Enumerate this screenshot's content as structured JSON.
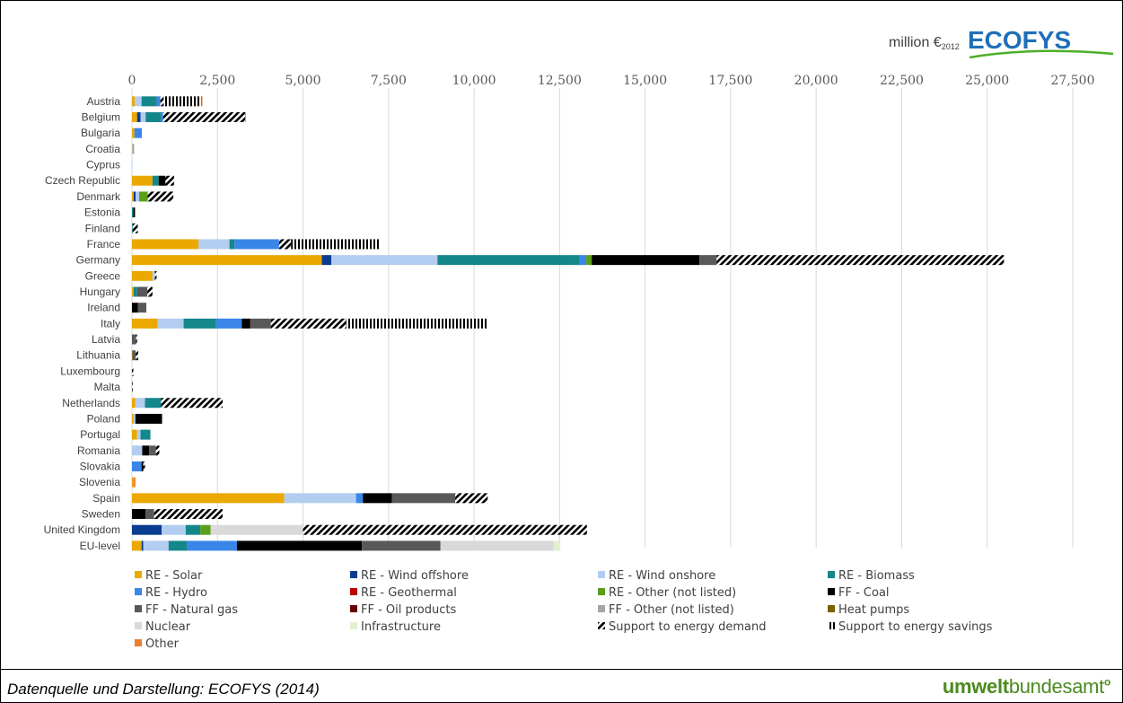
{
  "header": {
    "unit_label": "million €",
    "unit_subscript": "2012",
    "brand": "ECOFYS"
  },
  "footer": {
    "source": "Datenquelle und Darstellung: ECOFYS (2014)",
    "publisher_bold": "umwelt",
    "publisher_regular": "bundesamt"
  },
  "colors": {
    "axis_tick": "#595959",
    "grid": "#d9d9d9",
    "brand_blue": "#1f6fb8",
    "brand_green": "#4caf2a",
    "publisher_green": "#4b8a1f"
  },
  "chart_data": {
    "type": "bar",
    "orientation": "horizontal",
    "stacked": true,
    "xlim": [
      0,
      27500
    ],
    "xticks": [
      "0",
      "2,500",
      "5,000",
      "7,500",
      "10,000",
      "12,500",
      "15,000",
      "17,500",
      "20,000",
      "22,500",
      "25,000",
      "27,500"
    ],
    "xaxis_position": "top",
    "grid": true,
    "legend_position": "bottom",
    "categories": [
      "Austria",
      "Belgium",
      "Bulgaria",
      "Croatia",
      "Cyprus",
      "Czech Republic",
      "Denmark",
      "Estonia",
      "Finland",
      "France",
      "Germany",
      "Greece",
      "Hungary",
      "Ireland",
      "Italy",
      "Latvia",
      "Lithuania",
      "Luxembourg",
      "Malta",
      "Netherlands",
      "Poland",
      "Portugal",
      "Romania",
      "Slovakia",
      "Slovenia",
      "Spain",
      "Sweden",
      "United Kingdom",
      "EU-level"
    ],
    "series": [
      {
        "name": "RE - Solar",
        "color": "#eaa800",
        "pattern": "solid",
        "values": [
          80,
          150,
          70,
          10,
          0,
          600,
          50,
          0,
          0,
          1950,
          5550,
          600,
          50,
          0,
          750,
          0,
          10,
          0,
          0,
          100,
          50,
          150,
          0,
          0,
          50,
          4450,
          0,
          0,
          280
        ]
      },
      {
        "name": "RE - Wind offshore",
        "color": "#0a3d91",
        "pattern": "solid",
        "values": [
          0,
          100,
          0,
          0,
          0,
          0,
          60,
          0,
          0,
          0,
          280,
          0,
          0,
          0,
          0,
          0,
          0,
          0,
          0,
          0,
          0,
          0,
          0,
          0,
          0,
          0,
          0,
          870,
          50
        ]
      },
      {
        "name": "RE - Wind onshore",
        "color": "#b3cdf0",
        "pattern": "solid",
        "values": [
          200,
          150,
          0,
          30,
          10,
          0,
          100,
          0,
          0,
          900,
          3100,
          70,
          0,
          0,
          760,
          0,
          0,
          0,
          0,
          280,
          50,
          100,
          300,
          0,
          0,
          2100,
          0,
          700,
          740
        ]
      },
      {
        "name": "RE - Biomass",
        "color": "#14878a",
        "pattern": "solid",
        "values": [
          450,
          460,
          0,
          0,
          0,
          180,
          0,
          40,
          20,
          150,
          4150,
          0,
          100,
          0,
          950,
          0,
          0,
          0,
          0,
          470,
          0,
          290,
          0,
          0,
          0,
          0,
          0,
          430,
          550
        ]
      },
      {
        "name": "RE - Hydro",
        "color": "#3a86e8",
        "pattern": "solid",
        "values": [
          100,
          50,
          220,
          20,
          0,
          0,
          0,
          0,
          0,
          1300,
          200,
          0,
          0,
          0,
          750,
          0,
          0,
          0,
          0,
          0,
          0,
          0,
          0,
          280,
          0,
          200,
          0,
          0,
          1450
        ]
      },
      {
        "name": "RE - Geothermal",
        "color": "#c00000",
        "pattern": "solid",
        "values": [
          0,
          0,
          0,
          0,
          0,
          0,
          0,
          0,
          0,
          0,
          0,
          0,
          0,
          0,
          0,
          0,
          0,
          0,
          0,
          0,
          0,
          0,
          0,
          0,
          0,
          0,
          0,
          0,
          0
        ]
      },
      {
        "name": "RE - Other (not listed)",
        "color": "#5a9e1a",
        "pattern": "solid",
        "values": [
          0,
          0,
          0,
          0,
          0,
          0,
          250,
          0,
          0,
          0,
          160,
          0,
          0,
          0,
          0,
          0,
          0,
          0,
          0,
          0,
          0,
          0,
          0,
          0,
          0,
          0,
          0,
          300,
          0
        ]
      },
      {
        "name": "FF - Coal",
        "color": "#000000",
        "pattern": "solid",
        "values": [
          0,
          0,
          0,
          0,
          0,
          200,
          0,
          50,
          0,
          0,
          3150,
          0,
          0,
          170,
          250,
          0,
          0,
          0,
          0,
          0,
          780,
          0,
          200,
          50,
          0,
          850,
          400,
          0,
          3650
        ]
      },
      {
        "name": "FF - Natural gas",
        "color": "#595959",
        "pattern": "solid",
        "values": [
          0,
          0,
          0,
          0,
          0,
          0,
          0,
          0,
          0,
          0,
          500,
          0,
          300,
          250,
          600,
          120,
          100,
          0,
          0,
          0,
          0,
          0,
          200,
          0,
          0,
          1850,
          250,
          0,
          2300
        ]
      },
      {
        "name": "FF - Oil products",
        "color": "#6b0000",
        "pattern": "solid",
        "values": [
          0,
          0,
          0,
          0,
          0,
          0,
          0,
          0,
          0,
          0,
          0,
          0,
          0,
          0,
          0,
          0,
          0,
          0,
          0,
          0,
          0,
          0,
          0,
          0,
          0,
          0,
          0,
          0,
          0
        ]
      },
      {
        "name": "FF - Other (not listed)",
        "color": "#a6a6a6",
        "pattern": "solid",
        "values": [
          0,
          0,
          0,
          0,
          0,
          0,
          0,
          0,
          0,
          0,
          0,
          0,
          0,
          0,
          0,
          0,
          0,
          0,
          0,
          0,
          0,
          0,
          0,
          0,
          0,
          0,
          0,
          0,
          0
        ]
      },
      {
        "name": "Heat pumps",
        "color": "#7f6000",
        "pattern": "solid",
        "values": [
          0,
          0,
          0,
          0,
          0,
          0,
          0,
          0,
          0,
          0,
          0,
          0,
          0,
          0,
          0,
          0,
          0,
          0,
          0,
          0,
          0,
          0,
          0,
          0,
          0,
          0,
          0,
          0,
          0
        ]
      },
      {
        "name": "Nuclear",
        "color": "#d9d9d9",
        "pattern": "solid",
        "values": [
          0,
          0,
          0,
          0,
          0,
          0,
          0,
          0,
          0,
          0,
          0,
          0,
          0,
          0,
          0,
          0,
          0,
          0,
          0,
          0,
          0,
          0,
          0,
          0,
          0,
          0,
          0,
          2700,
          3300
        ]
      },
      {
        "name": "Infrastructure",
        "color": "#e2f0d0",
        "pattern": "solid",
        "values": [
          0,
          0,
          0,
          0,
          0,
          0,
          0,
          0,
          0,
          0,
          0,
          0,
          0,
          0,
          0,
          0,
          0,
          0,
          0,
          0,
          0,
          0,
          0,
          0,
          0,
          0,
          0,
          0,
          200
        ]
      },
      {
        "name": "Support to energy demand",
        "color": "#000000",
        "pattern": "hatch",
        "values": [
          100,
          2400,
          0,
          0,
          0,
          250,
          750,
          0,
          150,
          350,
          8400,
          50,
          150,
          0,
          2200,
          30,
          70,
          40,
          20,
          1800,
          0,
          0,
          100,
          50,
          0,
          950,
          2000,
          8300,
          0
        ]
      },
      {
        "name": "Support to energy savings",
        "color": "#000000",
        "pattern": "vstripe",
        "values": [
          1100,
          0,
          0,
          0,
          0,
          0,
          0,
          0,
          0,
          2600,
          0,
          0,
          0,
          0,
          4150,
          0,
          0,
          0,
          0,
          0,
          0,
          0,
          0,
          0,
          0,
          0,
          0,
          0,
          0
        ]
      },
      {
        "name": "Other",
        "color": "#ed7d31",
        "pattern": "solid",
        "values": [
          30,
          20,
          0,
          0,
          0,
          0,
          0,
          0,
          0,
          0,
          0,
          0,
          0,
          0,
          0,
          0,
          0,
          0,
          0,
          0,
          0,
          0,
          0,
          0,
          50,
          0,
          0,
          0,
          0
        ]
      }
    ]
  }
}
